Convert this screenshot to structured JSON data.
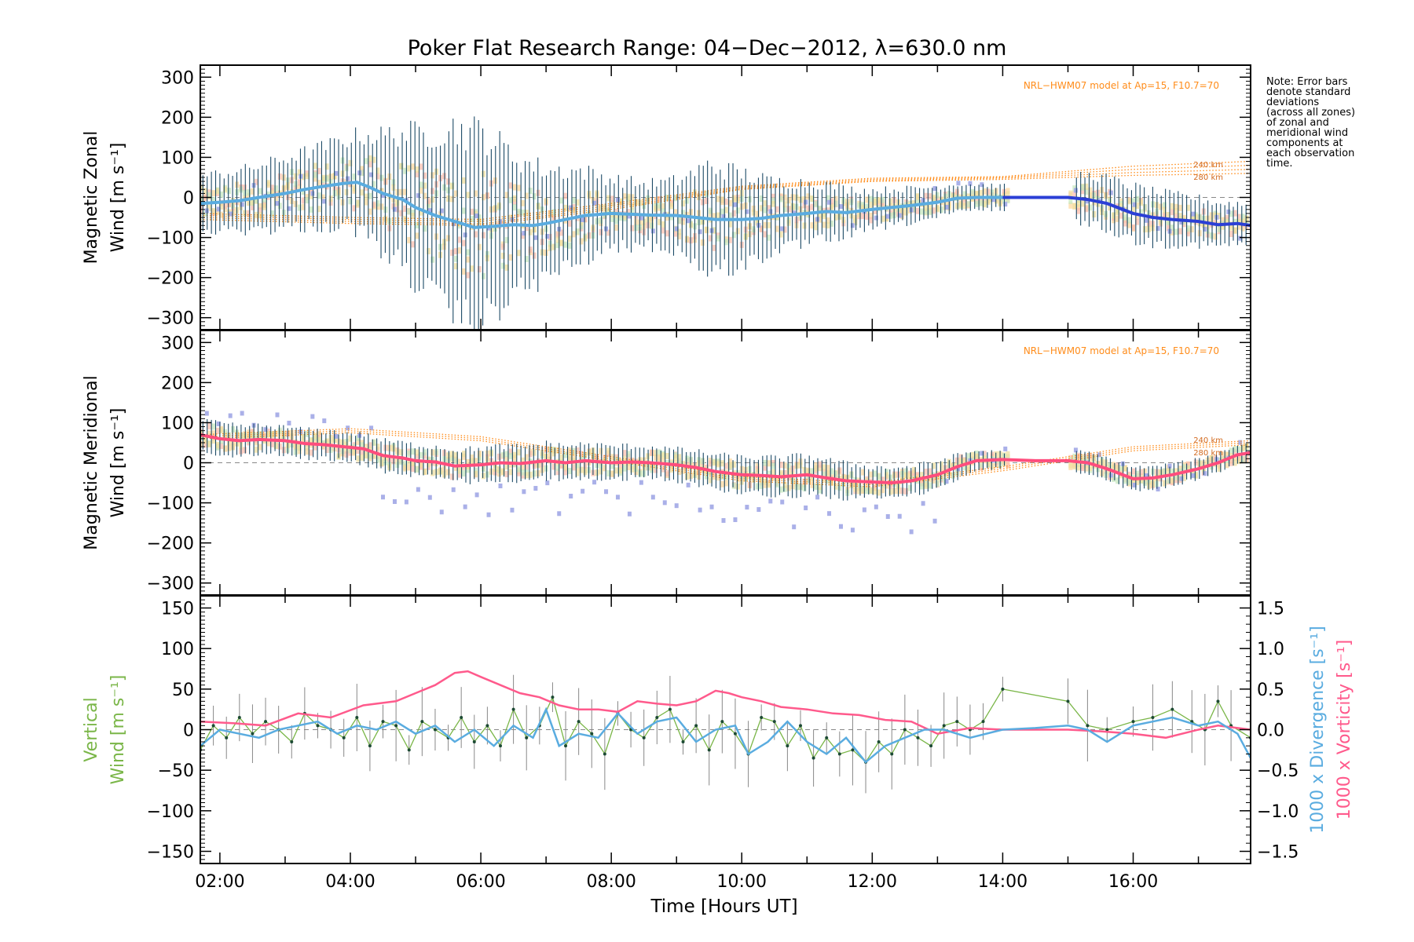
{
  "title": "Poker Flat Research Range: 04−Dec−2012, λ=630.0 nm",
  "note_lines": [
    "Note: Error bars",
    "denote standard",
    "deviations",
    "(across all zones)",
    "of zonal and",
    "meridional wind",
    "components at",
    "each observation",
    "time."
  ],
  "colors": {
    "zonal_line": "#5aace0",
    "zonal_line_late": "#2b3fd6",
    "meridional_line": "#ff4d7d",
    "vertical": "#7ab648",
    "divergence": "#5aace0",
    "vorticity": "#ff5a8c",
    "model": "#ff8c1a",
    "scatter": "#aab0e8",
    "errorbar": "#1c4a66"
  },
  "chart_data": [
    {
      "type": "line",
      "panel": "zonal",
      "ylabel_line1": "Magnetic Zonal",
      "ylabel_line2": "Wind [m s⁻¹]",
      "model_label": "NRL−HWM07 model at Ap=15, F10.7=70",
      "alt_labels": [
        "240 km",
        "280 km"
      ],
      "xlim": [
        1.7,
        17.8
      ],
      "ylim": [
        -330,
        330
      ],
      "yticks": [
        300,
        200,
        100,
        0,
        -100,
        -200,
        -300
      ],
      "ytick_labels": [
        "300",
        "200",
        "100",
        "0",
        "−100",
        "−200",
        "−300"
      ],
      "series": [
        {
          "x": [
            1.7,
            2.0,
            2.3,
            2.6,
            3.0,
            3.3,
            3.6,
            3.9,
            4.1,
            4.3,
            4.5,
            4.8,
            5.0,
            5.3,
            5.6,
            5.9,
            6.2,
            6.5,
            6.8,
            7.0,
            7.3,
            7.6,
            8.0,
            8.3,
            8.6,
            9.0,
            9.3,
            9.6,
            10.0,
            10.3,
            10.6,
            11.0,
            11.3,
            11.6,
            12.0,
            12.3,
            12.6,
            13.0,
            13.3,
            13.6,
            14.0
          ],
          "y": [
            -15,
            -12,
            -8,
            0,
            10,
            20,
            28,
            35,
            38,
            25,
            10,
            -5,
            -25,
            -45,
            -60,
            -75,
            -72,
            -68,
            -70,
            -65,
            -55,
            -45,
            -40,
            -42,
            -44,
            -45,
            -50,
            -55,
            -55,
            -52,
            -45,
            -40,
            -35,
            -38,
            -30,
            -25,
            -20,
            -12,
            -2,
            0,
            0
          ]
        },
        {
          "x": [
            14.0,
            14.5,
            15.0,
            15.3,
            15.6,
            16.0,
            16.3,
            16.6,
            17.0,
            17.3,
            17.6,
            17.8
          ],
          "y": [
            0,
            0,
            0,
            -5,
            -15,
            -40,
            -50,
            -55,
            -60,
            -68,
            -65,
            -70
          ]
        }
      ],
      "error_range": {
        "x": [
          1.7,
          2.5,
          3.5,
          4.0,
          4.5,
          5.0,
          5.5,
          6.0,
          6.5,
          7.0,
          7.5,
          8.0,
          8.5,
          9.0,
          9.5,
          10.0,
          10.5,
          11.0,
          12.0,
          13.0,
          14.0
        ],
        "half": [
          70,
          80,
          100,
          115,
          150,
          190,
          240,
          250,
          180,
          140,
          120,
          90,
          80,
          90,
          140,
          120,
          90,
          80,
          50,
          40,
          30
        ]
      },
      "error_range_late": {
        "x": [
          15.0,
          16.0,
          17.0,
          17.8
        ],
        "half": [
          60,
          70,
          60,
          50
        ]
      },
      "model": [
        {
          "x": [
            1.7,
            4,
            6,
            8,
            10,
            12,
            14,
            16,
            17.8
          ],
          "y": [
            -55,
            -65,
            -70,
            -30,
            20,
            40,
            45,
            55,
            60
          ]
        },
        {
          "x": [
            1.7,
            4,
            6,
            8,
            10,
            12,
            14,
            16,
            17.8
          ],
          "y": [
            -45,
            -55,
            -60,
            -20,
            25,
            45,
            50,
            70,
            80
          ]
        },
        {
          "x": [
            1.7,
            4,
            6,
            8,
            10,
            12,
            14,
            16,
            17.8
          ],
          "y": [
            -50,
            -60,
            -66,
            -25,
            22,
            42,
            48,
            62,
            70
          ]
        },
        {
          "x": [
            1.7,
            4,
            6,
            8,
            10,
            12,
            14,
            16,
            17.8
          ],
          "y": [
            -40,
            -50,
            -55,
            -15,
            28,
            48,
            52,
            78,
            90
          ]
        }
      ]
    },
    {
      "type": "line",
      "panel": "meridional",
      "ylabel_line1": "Magnetic Meridional",
      "ylabel_line2": "Wind [m s⁻¹]",
      "model_label": "NRL−HWM07 model at Ap=15, F10.7=70",
      "alt_labels": [
        "240 km",
        "280 km"
      ],
      "xlim": [
        1.7,
        17.8
      ],
      "ylim": [
        -330,
        330
      ],
      "yticks": [
        300,
        200,
        100,
        0,
        -100,
        -200,
        -300
      ],
      "ytick_labels": [
        "300",
        "200",
        "100",
        "0",
        "−100",
        "−200",
        "−300"
      ],
      "series": [
        {
          "x": [
            1.7,
            2.0,
            2.3,
            2.6,
            3.0,
            3.3,
            3.6,
            3.9,
            4.2,
            4.5,
            4.8,
            5.0,
            5.3,
            5.6,
            6.0,
            6.3,
            6.6,
            7.0,
            7.3,
            7.6,
            8.0,
            8.3,
            8.6,
            9.0,
            9.3,
            9.6,
            10.0,
            10.3,
            10.6,
            11.0,
            11.3,
            11.6,
            12.0,
            12.3,
            12.6,
            13.0,
            13.3,
            13.6,
            14.0
          ],
          "y": [
            70,
            60,
            55,
            58,
            55,
            48,
            45,
            40,
            35,
            18,
            12,
            5,
            2,
            -8,
            -5,
            0,
            -2,
            5,
            0,
            5,
            0,
            2,
            0,
            -5,
            -12,
            -22,
            -30,
            -32,
            -35,
            -30,
            -38,
            -45,
            -48,
            -50,
            -45,
            -30,
            -10,
            5,
            8
          ]
        },
        {
          "x": [
            14.0,
            14.5,
            15.0,
            15.3,
            15.6,
            16.0,
            16.3,
            16.6,
            17.0,
            17.3,
            17.6,
            17.8
          ],
          "y": [
            8,
            5,
            5,
            0,
            -15,
            -40,
            -38,
            -30,
            -15,
            0,
            20,
            25
          ]
        }
      ],
      "error_range": {
        "x": [
          1.7,
          3.0,
          5.0,
          7.0,
          9.0,
          10.0,
          11.0,
          12.0,
          13.0,
          14.0
        ],
        "half": [
          40,
          35,
          40,
          45,
          40,
          45,
          50,
          40,
          35,
          20
        ]
      },
      "error_range_late": {
        "x": [
          15.0,
          16.0,
          17.0,
          17.8
        ],
        "half": [
          25,
          30,
          25,
          25
        ]
      },
      "model": [
        {
          "x": [
            1.7,
            4,
            6,
            8,
            10,
            12,
            14,
            16,
            17.8
          ],
          "y": [
            60,
            75,
            55,
            5,
            -45,
            -60,
            -20,
            30,
            45
          ]
        },
        {
          "x": [
            1.7,
            4,
            6,
            8,
            10,
            12,
            14,
            16,
            17.8
          ],
          "y": [
            70,
            85,
            65,
            15,
            -35,
            -50,
            -10,
            40,
            55
          ]
        },
        {
          "x": [
            1.7,
            4,
            6,
            8,
            10,
            12,
            14,
            16,
            17.8
          ],
          "y": [
            65,
            80,
            60,
            10,
            -40,
            -55,
            -15,
            35,
            50
          ]
        }
      ]
    },
    {
      "type": "line",
      "panel": "vertical",
      "ylabel_line1": "Vertical",
      "ylabel_line2": "Wind [m s⁻¹]",
      "xlabel": "Time [Hours UT]",
      "xticks": [
        2,
        4,
        6,
        8,
        10,
        12,
        14,
        16
      ],
      "xtick_labels": [
        "02:00",
        "04:00",
        "06:00",
        "08:00",
        "10:00",
        "12:00",
        "14:00",
        "16:00"
      ],
      "xlim": [
        1.7,
        17.8
      ],
      "ylim": [
        -165,
        165
      ],
      "yticks": [
        150,
        100,
        50,
        0,
        -50,
        -100,
        -150
      ],
      "ytick_labels": [
        "150",
        "100",
        "50",
        "0",
        "−50",
        "−100",
        "−150"
      ],
      "y2lim": [
        -1.65,
        1.65
      ],
      "y2ticks": [
        1.5,
        1.0,
        0.5,
        0.0,
        -0.5,
        -1.0,
        -1.5
      ],
      "y2tick_labels": [
        "1.5",
        "1.0",
        "0.5",
        "0.0",
        "−0.5",
        "−1.0",
        "−1.5"
      ],
      "y2label_divergence": "1000 x Divergence [s⁻¹]",
      "y2label_vorticity": "1000 x Vorticity [s⁻¹]",
      "series": [
        {
          "name": "Vertical Wind",
          "x": [
            1.7,
            1.9,
            2.1,
            2.3,
            2.5,
            2.7,
            2.9,
            3.1,
            3.3,
            3.5,
            3.7,
            3.9,
            4.1,
            4.3,
            4.5,
            4.7,
            4.9,
            5.1,
            5.3,
            5.5,
            5.7,
            5.9,
            6.1,
            6.3,
            6.5,
            6.7,
            6.9,
            7.1,
            7.3,
            7.5,
            7.7,
            7.9,
            8.1,
            8.3,
            8.5,
            8.7,
            8.9,
            9.1,
            9.3,
            9.5,
            9.7,
            9.9,
            10.1,
            10.3,
            10.5,
            10.7,
            10.9,
            11.1,
            11.3,
            11.5,
            11.7,
            11.9,
            12.1,
            12.3,
            12.5,
            12.7,
            12.9,
            13.1,
            13.3,
            13.5,
            13.7,
            14.0,
            15.0,
            15.3,
            15.6,
            16.0,
            16.3,
            16.6,
            16.9,
            17.1,
            17.3,
            17.5,
            17.8
          ],
          "y": [
            -25,
            5,
            -10,
            15,
            -5,
            10,
            0,
            -15,
            20,
            5,
            0,
            -10,
            15,
            -20,
            10,
            5,
            -25,
            10,
            0,
            -10,
            15,
            -15,
            5,
            -20,
            25,
            -10,
            5,
            40,
            -20,
            10,
            -5,
            -30,
            20,
            0,
            -10,
            15,
            25,
            -15,
            5,
            -25,
            10,
            -5,
            -30,
            15,
            10,
            -20,
            5,
            -35,
            -10,
            -30,
            -25,
            -40,
            -15,
            -30,
            0,
            -10,
            -20,
            5,
            10,
            0,
            10,
            50,
            35,
            5,
            0,
            10,
            15,
            25,
            10,
            0,
            35,
            5,
            -10
          ]
        },
        {
          "name": "1000 x Divergence",
          "x": [
            1.7,
            2.0,
            2.3,
            2.6,
            2.9,
            3.2,
            3.5,
            3.8,
            4.1,
            4.4,
            4.7,
            5.0,
            5.3,
            5.6,
            5.9,
            6.2,
            6.5,
            6.8,
            7.0,
            7.2,
            7.5,
            7.8,
            8.1,
            8.4,
            8.7,
            9.0,
            9.3,
            9.6,
            9.9,
            10.1,
            10.4,
            10.7,
            11.0,
            11.3,
            11.6,
            11.9,
            12.2,
            12.5,
            12.8,
            13.1,
            13.5,
            14.0,
            14.5,
            15.0,
            15.3,
            15.6,
            16.0,
            16.3,
            16.6,
            17.0,
            17.3,
            17.6,
            17.8
          ],
          "y": [
            -0.2,
            0.0,
            -0.05,
            -0.1,
            0.0,
            0.05,
            0.1,
            -0.05,
            0.05,
            0.0,
            0.1,
            -0.05,
            0.05,
            -0.15,
            0.0,
            -0.2,
            0.05,
            -0.1,
            0.25,
            -0.2,
            -0.05,
            -0.1,
            0.2,
            -0.05,
            0.1,
            0.15,
            -0.15,
            0.0,
            0.05,
            -0.3,
            -0.15,
            0.1,
            -0.15,
            -0.3,
            -0.1,
            -0.4,
            -0.2,
            -0.1,
            0.0,
            0.0,
            -0.1,
            0.0,
            0.02,
            0.05,
            0.0,
            -0.15,
            0.05,
            0.1,
            0.15,
            0.05,
            0.1,
            -0.05,
            -0.35
          ]
        },
        {
          "name": "1000 x Vorticity",
          "x": [
            1.7,
            2.2,
            2.7,
            3.2,
            3.7,
            4.2,
            4.7,
            5.0,
            5.3,
            5.6,
            5.8,
            6.0,
            6.3,
            6.6,
            6.9,
            7.2,
            7.5,
            7.8,
            8.1,
            8.4,
            8.7,
            9.0,
            9.3,
            9.6,
            9.8,
            10.0,
            10.3,
            10.6,
            11.0,
            11.4,
            11.8,
            12.2,
            12.6,
            13.0,
            13.5,
            14.0,
            14.5,
            15.0,
            15.5,
            16.0,
            16.5,
            17.0,
            17.3,
            17.6,
            17.8
          ],
          "y": [
            0.1,
            0.08,
            0.05,
            0.2,
            0.15,
            0.3,
            0.35,
            0.45,
            0.55,
            0.7,
            0.72,
            0.65,
            0.55,
            0.45,
            0.4,
            0.3,
            0.25,
            0.25,
            0.22,
            0.35,
            0.32,
            0.3,
            0.35,
            0.48,
            0.45,
            0.4,
            0.35,
            0.28,
            0.25,
            0.2,
            0.18,
            0.12,
            0.1,
            -0.05,
            0.02,
            0.0,
            0.0,
            0.0,
            -0.02,
            -0.05,
            -0.1,
            0.0,
            0.05,
            0.02,
            0.0
          ]
        }
      ]
    }
  ]
}
